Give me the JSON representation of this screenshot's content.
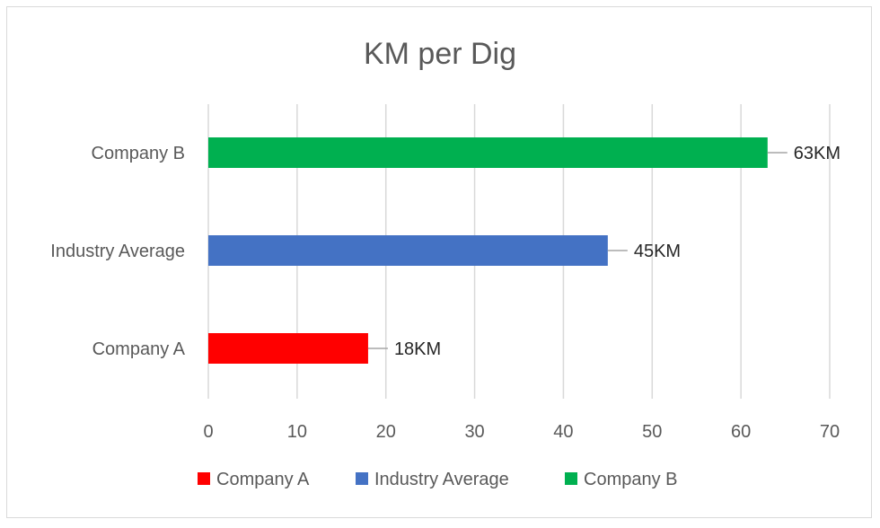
{
  "chart_data": {
    "type": "bar",
    "orientation": "horizontal",
    "title": "KM per Dig",
    "xlabel": "",
    "ylabel": "",
    "categories": [
      "Company A",
      "Industry Average",
      "Company B"
    ],
    "values": [
      18,
      45,
      63
    ],
    "data_labels": [
      "18KM",
      "45KM",
      "63KM"
    ],
    "colors": [
      "#ff0000",
      "#4472c4",
      "#00b050"
    ],
    "xlim": [
      0,
      70
    ],
    "xticks": [
      0,
      10,
      20,
      30,
      40,
      50,
      60,
      70
    ],
    "grid": "vertical",
    "legend": {
      "position": "bottom",
      "entries": [
        "Company A",
        "Industry Average",
        "Company B"
      ]
    }
  }
}
